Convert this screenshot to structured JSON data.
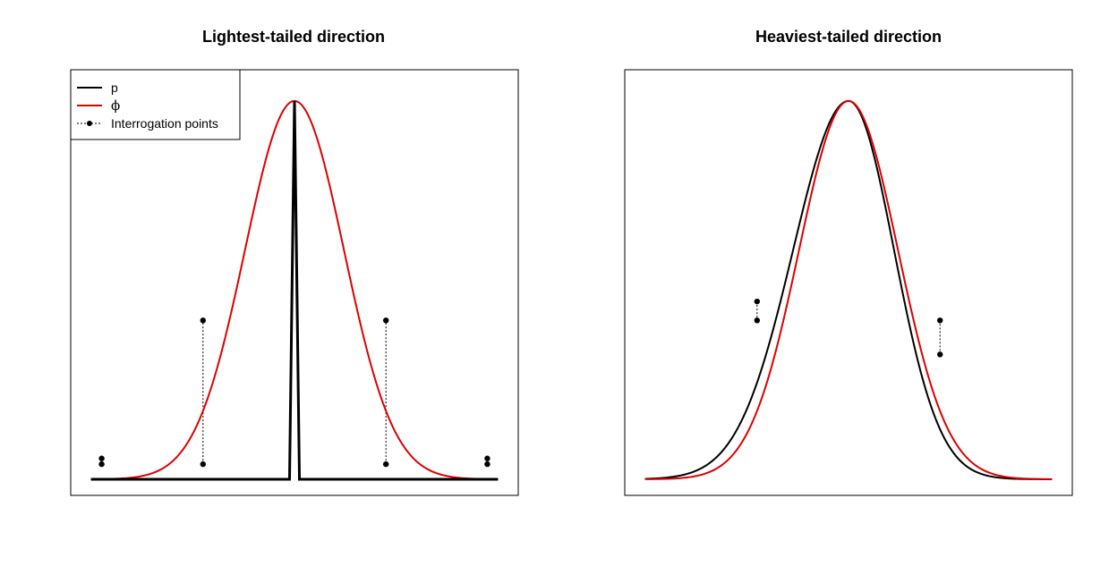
{
  "chart_data": [
    {
      "type": "line",
      "title": "Lightest-tailed direction",
      "xlim": [
        -4.2,
        4.2
      ],
      "ylim": [
        0,
        1.04
      ],
      "legend_position": "top-left",
      "series": [
        {
          "key": "p",
          "name": "p",
          "color": "#000000",
          "kind": "spike",
          "center": 0,
          "height": 1.0,
          "half_width": 0.1
        },
        {
          "key": "phi",
          "name": "ϕ",
          "color": "#dd0000",
          "kind": "gaussian",
          "mean": 0,
          "sd": 1.0,
          "height": 1.0
        }
      ],
      "interrogation": {
        "name": "Interrogation points",
        "x": [
          -3.9,
          -1.85,
          1.85,
          3.9
        ],
        "p": [
          0.04,
          0.04,
          0.04,
          0.04
        ],
        "phi": [
          0.055,
          0.42,
          0.42,
          0.055
        ]
      }
    },
    {
      "type": "line",
      "title": "Heaviest-tailed direction",
      "xlim": [
        -4.2,
        4.2
      ],
      "ylim": [
        0,
        1.04
      ],
      "series": [
        {
          "key": "p",
          "name": "p",
          "color": "#000000",
          "kind": "skew-gaussian",
          "mean": 0,
          "sd_left": 1.12,
          "sd_right": 0.92,
          "height": 1.0
        },
        {
          "key": "phi",
          "name": "ϕ",
          "color": "#dd0000",
          "kind": "gaussian",
          "mean": 0,
          "sd": 1.0,
          "height": 1.0
        }
      ],
      "interrogation": {
        "name": "Interrogation points",
        "x": [
          -1.85,
          1.85
        ],
        "p": [
          0.47,
          0.33
        ],
        "phi": [
          0.42,
          0.42
        ]
      }
    }
  ]
}
